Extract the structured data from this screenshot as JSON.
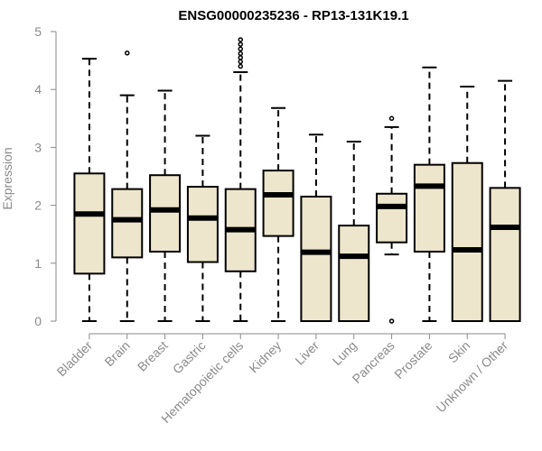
{
  "chart_data": {
    "type": "boxplot",
    "title": "ENSG00000235236 - RP13-131K19.1",
    "xlabel": "",
    "ylabel": "Expression",
    "ylim": [
      0,
      5
    ],
    "yticks": [
      "0",
      "1",
      "2",
      "3",
      "4",
      "5"
    ],
    "grid": false,
    "colors": {
      "box_fill": "#ede6cc",
      "stroke": "#000000",
      "axis": "#8a8a8a"
    },
    "categories": [
      "Bladder",
      "Brain",
      "Breast",
      "Gastric",
      "Hematopoietic cells",
      "Kidney",
      "Liver",
      "Lung",
      "Pancreas",
      "Prostate",
      "Skin",
      "Unknown / Other"
    ],
    "series": [
      {
        "name": "Bladder",
        "min": 0,
        "q1": 0.82,
        "median": 1.85,
        "q3": 2.55,
        "max": 4.53,
        "outliers": []
      },
      {
        "name": "Brain",
        "min": 0,
        "q1": 1.1,
        "median": 1.75,
        "q3": 2.28,
        "max": 3.9,
        "outliers": [
          4.63
        ]
      },
      {
        "name": "Breast",
        "min": 0,
        "q1": 1.2,
        "median": 1.92,
        "q3": 2.52,
        "max": 3.98,
        "outliers": []
      },
      {
        "name": "Gastric",
        "min": 0,
        "q1": 1.02,
        "median": 1.78,
        "q3": 2.32,
        "max": 3.2,
        "outliers": []
      },
      {
        "name": "Hematopoietic cells",
        "min": 0,
        "q1": 0.86,
        "median": 1.58,
        "q3": 2.28,
        "max": 4.3,
        "outliers": [
          4.4,
          4.48,
          4.55,
          4.62,
          4.7,
          4.78,
          4.86
        ]
      },
      {
        "name": "Kidney",
        "min": 0,
        "q1": 1.47,
        "median": 2.18,
        "q3": 2.6,
        "max": 3.68,
        "outliers": []
      },
      {
        "name": "Liver",
        "min": 0,
        "q1": 0,
        "median": 1.19,
        "q3": 2.15,
        "max": 3.22,
        "outliers": []
      },
      {
        "name": "Lung",
        "min": 0,
        "q1": 0,
        "median": 1.12,
        "q3": 1.65,
        "max": 3.1,
        "outliers": []
      },
      {
        "name": "Pancreas",
        "min": 1.15,
        "q1": 1.36,
        "median": 1.98,
        "q3": 2.2,
        "max": 3.35,
        "outliers": [
          0,
          3.5
        ]
      },
      {
        "name": "Prostate",
        "min": 0,
        "q1": 1.2,
        "median": 2.33,
        "q3": 2.7,
        "max": 4.38,
        "outliers": []
      },
      {
        "name": "Skin",
        "min": 0,
        "q1": 0,
        "median": 1.23,
        "q3": 2.73,
        "max": 4.05,
        "outliers": []
      },
      {
        "name": "Unknown / Other",
        "min": 0,
        "q1": 0,
        "median": 1.62,
        "q3": 2.3,
        "max": 4.15,
        "outliers": []
      }
    ]
  }
}
